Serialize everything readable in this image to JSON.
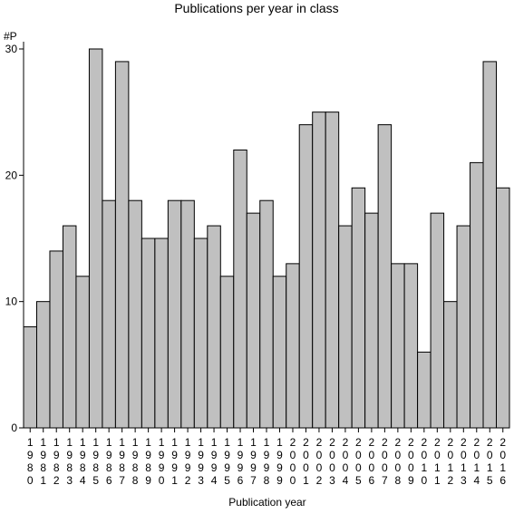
{
  "chart_data": {
    "type": "bar",
    "title": "Publications per year in class",
    "xlabel": "Publication year",
    "ylabel": "#P",
    "ylim": [
      0,
      30
    ],
    "yticks": [
      0,
      10,
      20,
      30
    ],
    "grid": false,
    "bar_color": "#c0c0c0",
    "categories": [
      "1980",
      "1981",
      "1982",
      "1983",
      "1984",
      "1985",
      "1986",
      "1987",
      "1988",
      "1989",
      "1990",
      "1991",
      "1992",
      "1993",
      "1994",
      "1995",
      "1996",
      "1997",
      "1998",
      "1999",
      "2000",
      "2001",
      "2002",
      "2003",
      "2004",
      "2005",
      "2006",
      "2007",
      "2008",
      "2009",
      "2010",
      "2011",
      "2012",
      "2013",
      "2014",
      "2015",
      "2016"
    ],
    "values": [
      8,
      10,
      14,
      16,
      12,
      30,
      18,
      29,
      18,
      15,
      15,
      18,
      18,
      15,
      16,
      12,
      22,
      17,
      18,
      12,
      13,
      24,
      25,
      25,
      16,
      19,
      17,
      24,
      13,
      13,
      6,
      17,
      10,
      16,
      21,
      29,
      19
    ]
  }
}
